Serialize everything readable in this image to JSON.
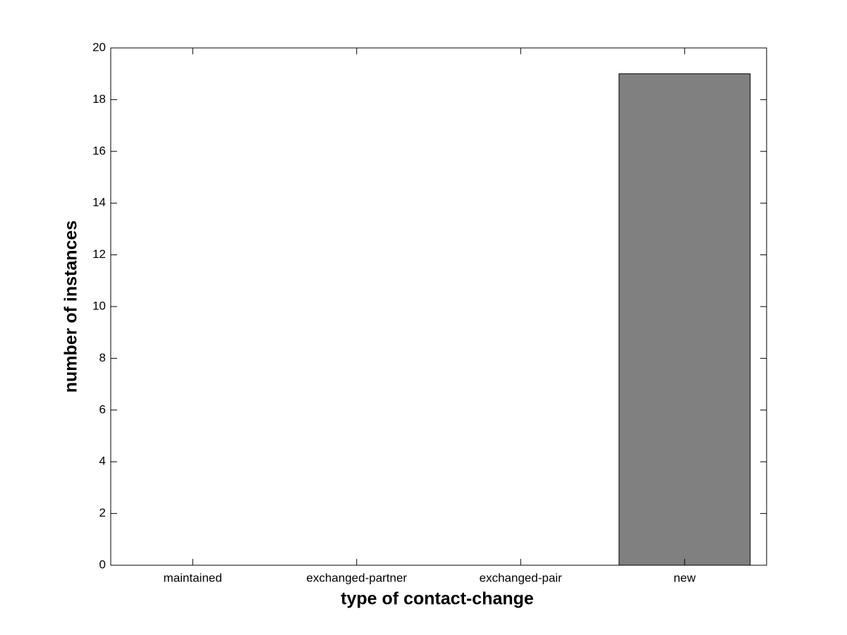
{
  "chart_data": {
    "type": "bar",
    "x_label": "type of contact-change",
    "y_label": "number of instances",
    "categories": [
      "maintained",
      "exchanged-partner",
      "exchanged-pair",
      "new"
    ],
    "values": [
      0,
      0,
      0,
      19
    ],
    "color": "#808080",
    "ylim": [
      0,
      20
    ],
    "yticks": [
      0,
      2,
      4,
      6,
      8,
      10,
      12,
      14,
      16,
      18,
      20
    ],
    "grid": false
  }
}
